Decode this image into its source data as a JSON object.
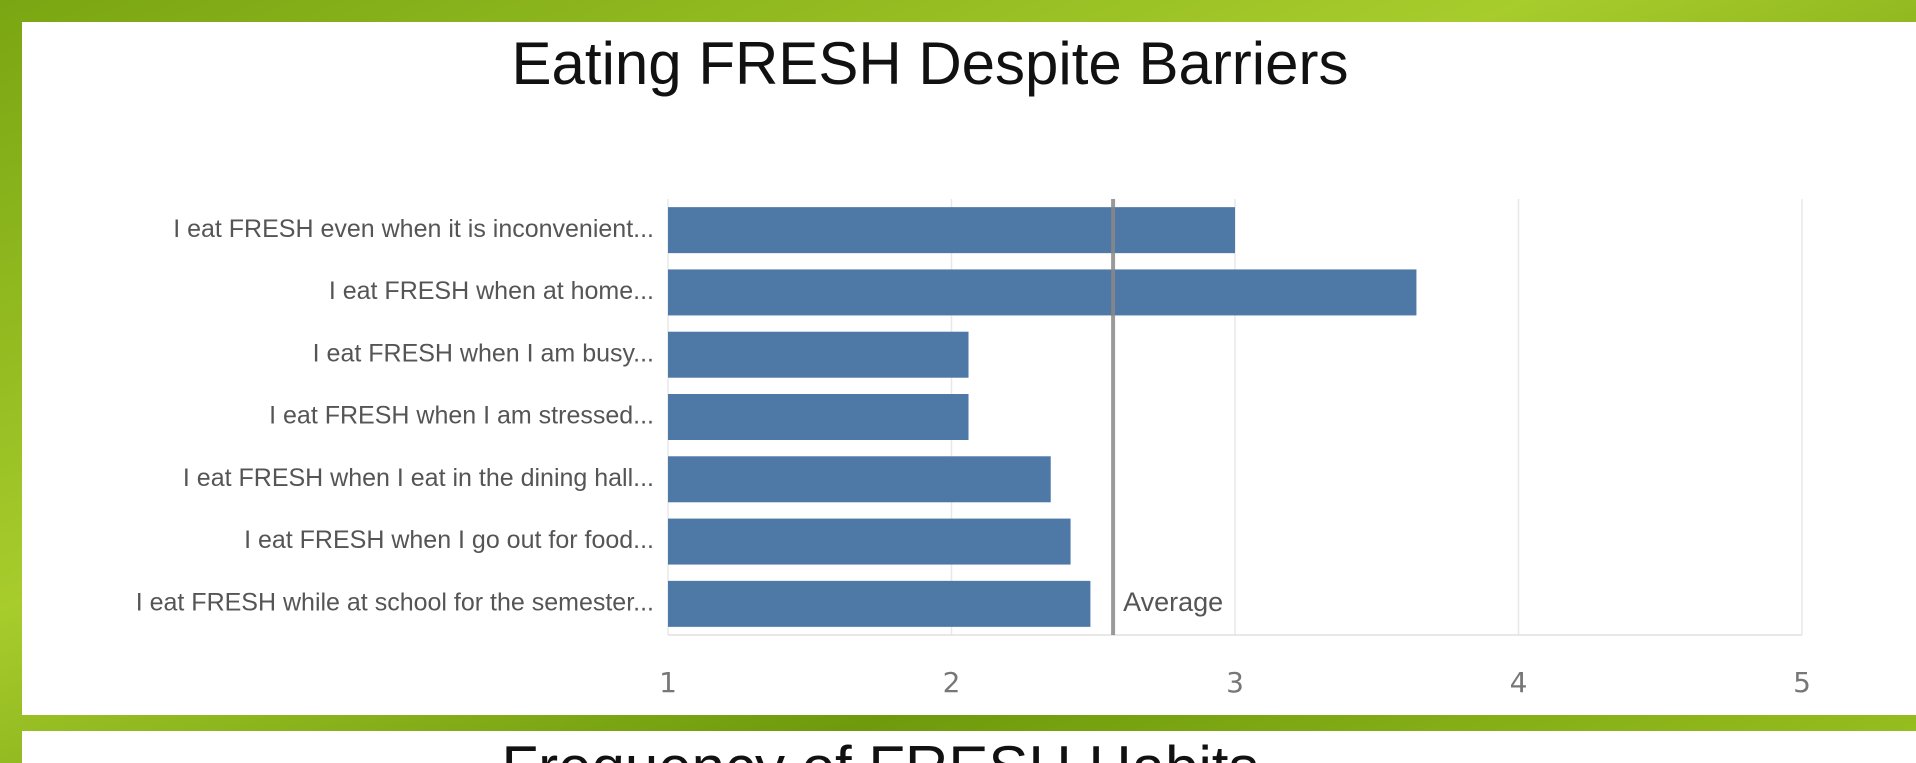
{
  "chart_data": {
    "type": "bar",
    "orientation": "horizontal",
    "title": "Eating FRESH Despite Barriers",
    "categories": [
      "I eat FRESH even when it is inconvenient...",
      "I eat FRESH when at home...",
      "I eat FRESH when I am busy...",
      "I eat FRESH when I am stressed...",
      "I eat FRESH when I eat in the dining hall...",
      "I eat FRESH when I go out for food...",
      "I eat FRESH while at school for the semester..."
    ],
    "values": [
      3.0,
      3.64,
      2.06,
      2.06,
      2.35,
      2.42,
      2.49
    ],
    "color": "#4e79a7",
    "xlim": [
      1,
      5
    ],
    "xticks": [
      1,
      2,
      3,
      4,
      5
    ],
    "grid": true,
    "reference_line": {
      "label": "Average",
      "value": 2.57,
      "color": "#888888"
    }
  },
  "next_panel": {
    "title": "Frequency of FRESH Habits"
  }
}
